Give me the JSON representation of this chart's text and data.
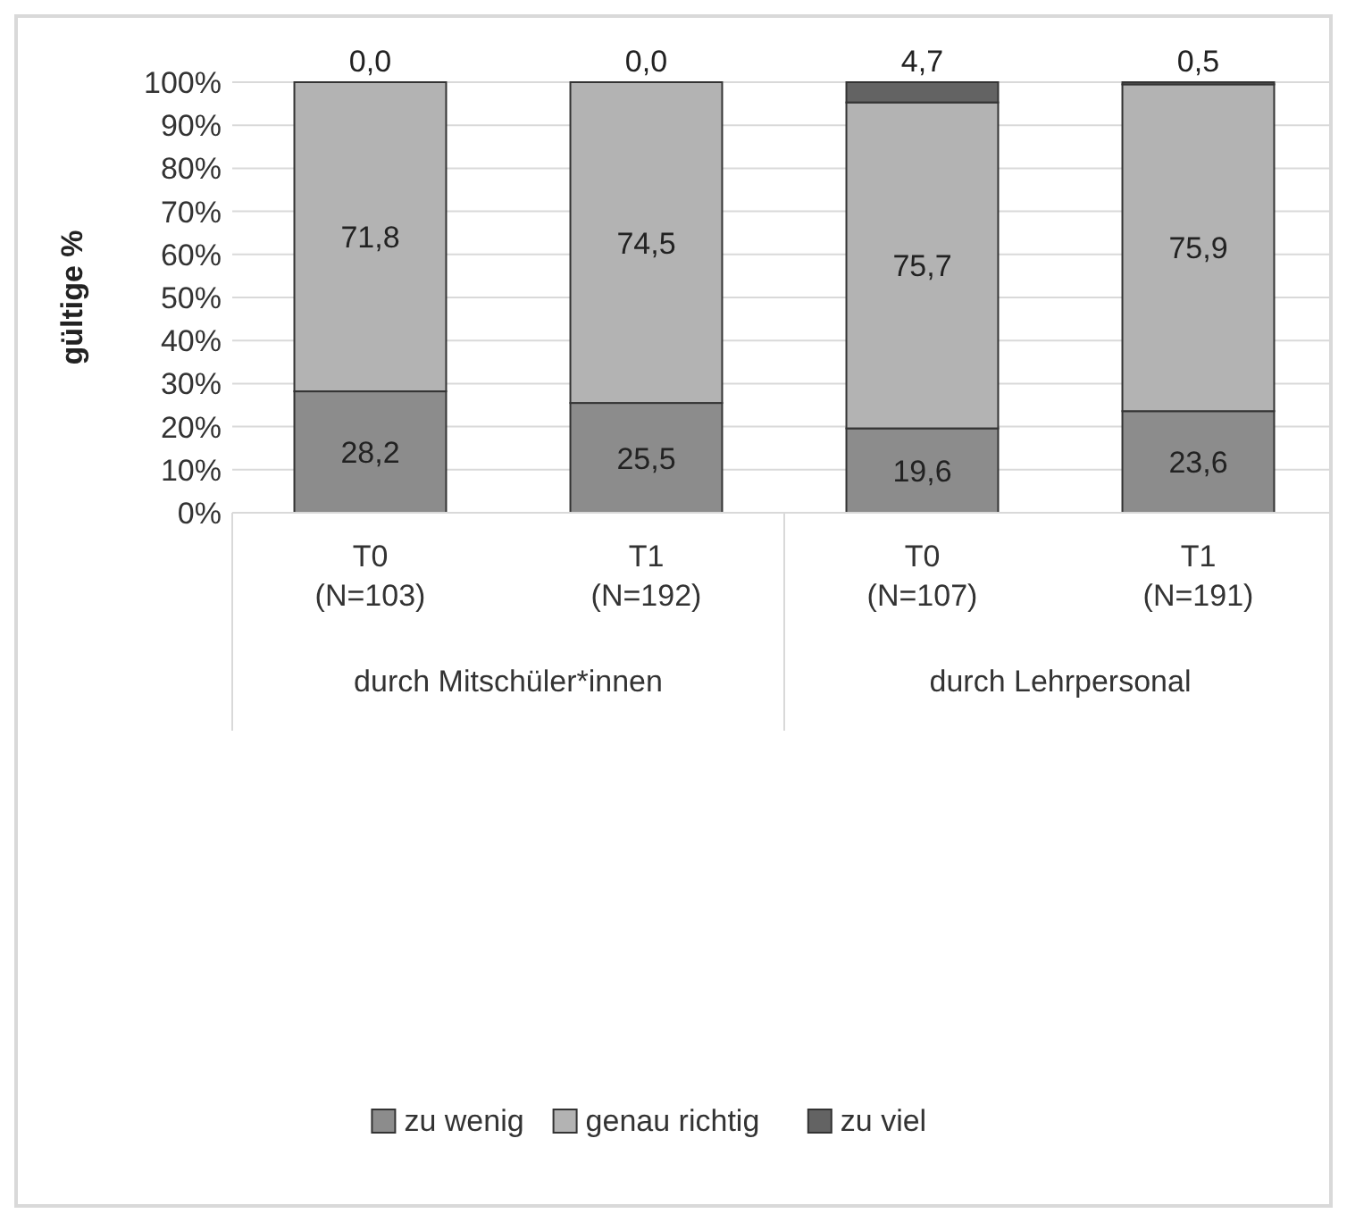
{
  "chart_data": {
    "type": "bar",
    "stacked": true,
    "ylabel": "gültige %",
    "categories": [
      "T0\n(N=103)",
      "T1\n(N=192)",
      "T0\n(N=107)",
      "T1\n(N=191)"
    ],
    "annotations": [
      "durch Mitschüler*innen",
      "durch Lehrpersonal"
    ],
    "series": [
      {
        "name": "zu wenig",
        "color": "#8c8c8c",
        "values": [
          28.2,
          25.5,
          19.6,
          23.6
        ],
        "value_labels": [
          "28,2",
          "25,5",
          "19,6",
          "23,6"
        ]
      },
      {
        "name": "genau richtig",
        "color": "#b3b3b3",
        "values": [
          71.8,
          74.5,
          75.7,
          75.9
        ],
        "value_labels": [
          "71,8",
          "74,5",
          "75,7",
          "75,9"
        ]
      },
      {
        "name": "zu viel",
        "color": "#636363",
        "values": [
          0.0,
          0.0,
          4.7,
          0.5
        ],
        "value_labels": [
          "0,0",
          "0,0",
          "4,7",
          "0,5"
        ]
      }
    ],
    "ylim": [
      0,
      100
    ],
    "yticks": [
      {
        "value": 0,
        "label": "0%"
      },
      {
        "value": 10,
        "label": "10%"
      },
      {
        "value": 20,
        "label": "20%"
      },
      {
        "value": 30,
        "label": "30%"
      },
      {
        "value": 40,
        "label": "40%"
      },
      {
        "value": 50,
        "label": "50%"
      },
      {
        "value": 60,
        "label": "60%"
      },
      {
        "value": 70,
        "label": "70%"
      },
      {
        "value": 80,
        "label": "80%"
      },
      {
        "value": 90,
        "label": "90%"
      },
      {
        "value": 100,
        "label": "100%"
      }
    ],
    "grid": "y",
    "legend": "bottom"
  }
}
